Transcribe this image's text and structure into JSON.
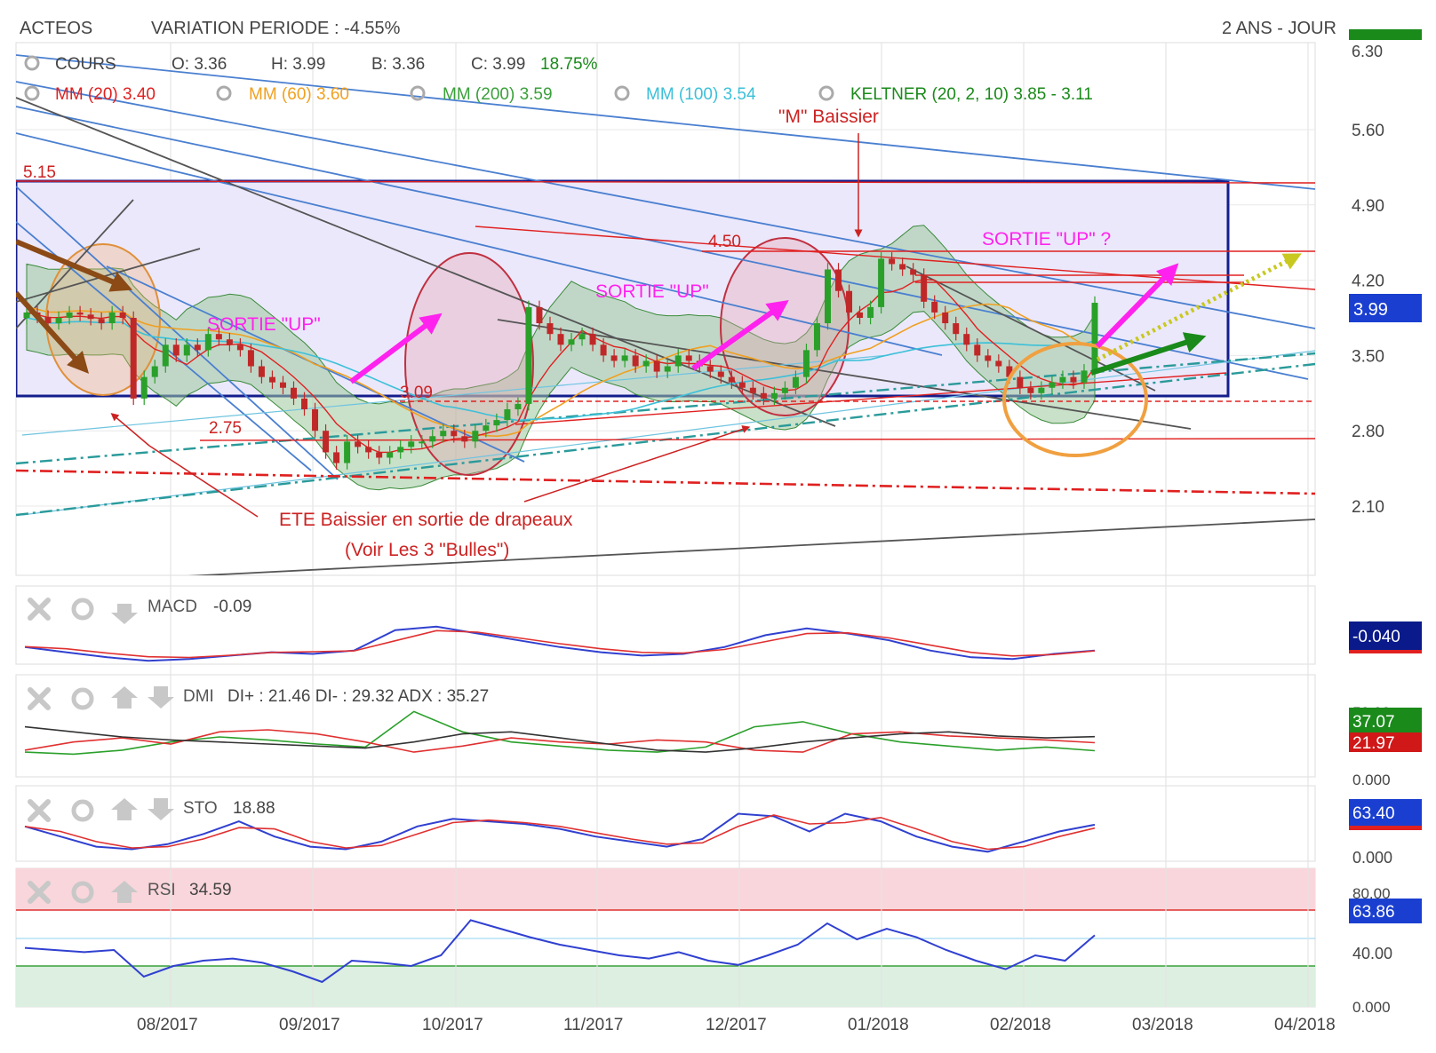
{
  "header": {
    "symbol": "ACTEOS",
    "variation": "VARIATION PERIODE : -4.55%",
    "period": "2 ANS - JOUR"
  },
  "ohlc": {
    "cours": "COURS",
    "o": "O: 3.36",
    "h": "H: 3.99",
    "b": "B: 3.36",
    "c": "C: 3.99",
    "pct": "18.75%"
  },
  "indicators": {
    "mm20": "MM (20)  3.40",
    "mm60": "MM (60)  3.60",
    "mm200": "MM (200)  3.59",
    "mm100": "MM (100)  3.54",
    "keltner": "KELTNER (20, 2, 10)  3.85 - 3.11"
  },
  "annotations": {
    "m_baissier": "\"M\" Baissier",
    "sortie_up_1": "SORTIE \"UP\"",
    "sortie_up_2": "SORTIE \"UP\"",
    "sortie_up_3": "SORTIE \"UP\" ?",
    "lvl_515": "5.15",
    "lvl_450": "4.50",
    "lvl_309": "3.09",
    "lvl_275": "2.75",
    "ete_line1": "ETE Baissier en sortie de drapeaux",
    "ete_line2": "(Voir Les 3 \"Bulles\")"
  },
  "price_axis": {
    "ticks": [
      "5.60",
      "4.90",
      "4.20",
      "3.50",
      "2.80",
      "2.10"
    ],
    "top_clipped": "6.30",
    "current": "3.99"
  },
  "x_axis": {
    "ticks": [
      "08/2017",
      "09/2017",
      "10/2017",
      "11/2017",
      "12/2017",
      "01/2018",
      "02/2018",
      "03/2018",
      "04/2018"
    ]
  },
  "panels": {
    "macd": {
      "label": "MACD",
      "value": "-0.09",
      "badge": "-0.040"
    },
    "dmi": {
      "label": "DMI",
      "value": "DI+ : 21.46 DI- : 29.32 ADX : 35.27",
      "badge_green": "37.07",
      "badge_red": "21.97",
      "tick_top": "50.00",
      "tick_bottom": "0.000"
    },
    "sto": {
      "label": "STO",
      "value": "18.88",
      "badge": "63.40",
      "tick_bottom": "0.000"
    },
    "rsi": {
      "label": "RSI",
      "value": "34.59",
      "badge": "63.86",
      "tick_top": "80.00",
      "tick_mid": "40.00",
      "tick_bottom": "0.000"
    }
  },
  "colors": {
    "mm20": "#e02020",
    "mm60": "#f0a020",
    "mm200": "#3aa03a",
    "mm100": "#3cc0d8",
    "keltner": "#1a8a1a",
    "badge_blue": "#1a3fd0",
    "badge_navy": "#0a1a8a",
    "magenta": "#ff22ee",
    "annot_red": "#cc2222"
  },
  "chart_data": {
    "type": "candlestick",
    "title": "ACTEOS",
    "x_range": [
      "2017-07",
      "2018-04"
    ],
    "y_range": [
      1.8,
      6.4
    ],
    "closes": [
      3.9,
      3.86,
      3.8,
      3.85,
      3.9,
      3.88,
      3.84,
      3.8,
      3.9,
      3.85,
      3.1,
      3.3,
      3.4,
      3.6,
      3.5,
      3.6,
      3.55,
      3.7,
      3.65,
      3.6,
      3.55,
      3.4,
      3.3,
      3.25,
      3.2,
      3.1,
      3.0,
      2.8,
      2.6,
      2.5,
      2.7,
      2.65,
      2.6,
      2.55,
      2.6,
      2.65,
      2.7,
      2.7,
      2.75,
      2.8,
      2.75,
      2.7,
      2.8,
      2.85,
      2.9,
      3.0,
      3.05,
      3.95,
      3.8,
      3.7,
      3.6,
      3.65,
      3.7,
      3.6,
      3.5,
      3.45,
      3.5,
      3.4,
      3.45,
      3.35,
      3.4,
      3.5,
      3.45,
      3.4,
      3.35,
      3.3,
      3.25,
      3.2,
      3.15,
      3.1,
      3.15,
      3.2,
      3.3,
      3.55,
      3.8,
      4.3,
      4.1,
      3.9,
      3.85,
      3.95,
      4.4,
      4.35,
      4.3,
      4.25,
      4.0,
      3.9,
      3.8,
      3.7,
      3.6,
      3.5,
      3.45,
      3.4,
      3.3,
      3.2,
      3.15,
      3.2,
      3.25,
      3.3,
      3.25,
      3.36,
      3.99
    ],
    "series": [
      {
        "name": "MM (20)",
        "values": [
          3.4
        ]
      },
      {
        "name": "MM (60)",
        "values": [
          3.6
        ]
      },
      {
        "name": "MM (200)",
        "values": [
          3.59
        ]
      },
      {
        "name": "MM (100)",
        "values": [
          3.54
        ]
      },
      {
        "name": "KELTNER (20, 2, 10)",
        "values": [
          3.85,
          3.11
        ]
      }
    ],
    "levels": [
      5.15,
      4.5,
      3.09,
      2.75
    ],
    "macd": [
      -0.02,
      -0.05,
      -0.08,
      -0.1,
      -0.09,
      -0.07,
      -0.05,
      -0.06,
      -0.04,
      0.08,
      0.1,
      0.06,
      0.02,
      -0.02,
      -0.05,
      -0.07,
      -0.06,
      -0.02,
      0.05,
      0.09,
      0.06,
      0.02,
      -0.04,
      -0.08,
      -0.09,
      -0.06,
      -0.04
    ],
    "dmi_plus": [
      20,
      18,
      22,
      30,
      35,
      32,
      28,
      25,
      60,
      40,
      30,
      26,
      22,
      20,
      25,
      45,
      50,
      38,
      30,
      26,
      22,
      25,
      21.46
    ],
    "dmi_minus": [
      22,
      30,
      34,
      28,
      40,
      42,
      38,
      30,
      20,
      26,
      34,
      30,
      28,
      32,
      30,
      22,
      20,
      38,
      40,
      36,
      34,
      32,
      29.32
    ],
    "adx": [
      45,
      40,
      35,
      32,
      30,
      28,
      26,
      24,
      30,
      38,
      40,
      34,
      28,
      22,
      20,
      24,
      30,
      34,
      38,
      40,
      36,
      34,
      35.27
    ],
    "sto": [
      60,
      40,
      20,
      15,
      25,
      45,
      70,
      40,
      20,
      15,
      30,
      60,
      75,
      70,
      65,
      55,
      40,
      30,
      20,
      35,
      85,
      80,
      50,
      85,
      70,
      40,
      20,
      10,
      30,
      50,
      63.4
    ],
    "rsi": [
      52,
      50,
      48,
      50,
      25,
      35,
      40,
      42,
      38,
      30,
      20,
      40,
      38,
      35,
      45,
      78,
      70,
      62,
      55,
      50,
      45,
      42,
      48,
      40,
      36,
      45,
      55,
      75,
      60,
      70,
      62,
      50,
      40,
      32,
      45,
      40,
      63.86
    ],
    "rsi_levels": [
      70,
      30
    ]
  }
}
